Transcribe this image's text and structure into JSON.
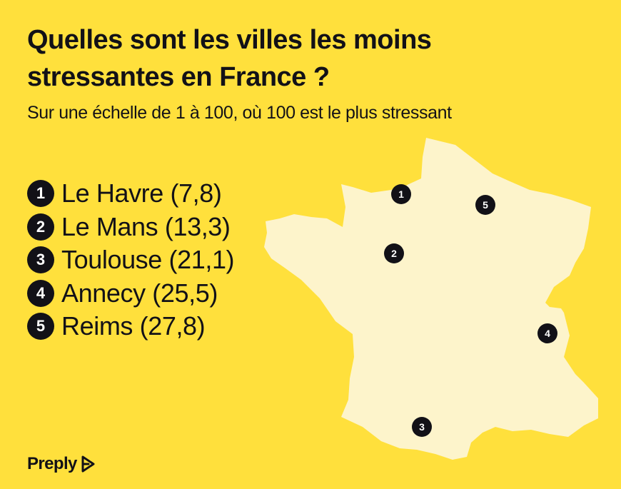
{
  "title": "Quelles sont les villes les moins stressantes en France ?",
  "subtitle": "Sur une échelle de 1 à 100, où 100 est le plus stressant",
  "ranking": [
    {
      "rank": "1",
      "label": "Le Havre (7,8)"
    },
    {
      "rank": "2",
      "label": "Le Mans (13,3)"
    },
    {
      "rank": "3",
      "label": "Toulouse (21,1)"
    },
    {
      "rank": "4",
      "label": "Annecy (25,5)"
    },
    {
      "rank": "5",
      "label": "Reims (27,8)"
    }
  ],
  "map_markers": [
    "1",
    "2",
    "3",
    "4",
    "5"
  ],
  "brand": {
    "name": "Preply",
    "icon": "preply-logo-icon"
  },
  "colors": {
    "background": "#ffe03c",
    "map_fill": "#fdf4cb",
    "text": "#121117",
    "marker": "#121117",
    "marker_text": "#ffffff"
  }
}
